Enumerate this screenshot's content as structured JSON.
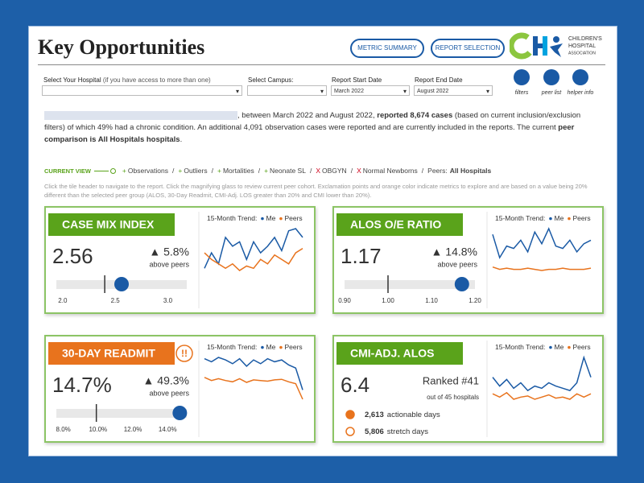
{
  "header": {
    "title": "Key Opportunities",
    "buttons": [
      "METRIC SUMMARY",
      "REPORT SELECTION"
    ],
    "logo": [
      "CHILDREN'S",
      "HOSPITAL",
      "ASSOCIATION"
    ]
  },
  "filters": {
    "hospital_label": "Select Your Hospital",
    "hospital_note": "(if you have access to more than one)",
    "campus_label": "Select Campus:",
    "start_label": "Report Start Date",
    "start_value": "March 2022",
    "end_label": "Report End Date",
    "end_value": "August 2022",
    "icons": [
      "filters",
      "peer list",
      "helper info"
    ]
  },
  "summary": [
    {
      "text": ", between March 2022 and August 2022, ",
      "bold": false
    },
    {
      "text": "reported 8,674 cases",
      "bold": true
    },
    {
      "text": " (based on current inclusion/exclusion filters) of which 49% had a chronic condition. An additional 4,091 observation cases were reported and are currently included in the reports. The current ",
      "bold": false
    },
    {
      "text": "peer comparison is All Hospitals hospitals",
      "bold": true
    },
    {
      "text": ".",
      "bold": false
    }
  ],
  "current_view": {
    "label": "CURRENT VIEW",
    "separator": "/",
    "items": [
      {
        "mark": "+",
        "text": "Observations",
        "excluded": false
      },
      {
        "mark": "+",
        "text": "Outliers",
        "excluded": false
      },
      {
        "mark": "+",
        "text": "Mortalities",
        "excluded": false
      },
      {
        "mark": "+",
        "text": "Neonate SL",
        "excluded": false
      },
      {
        "mark": "X",
        "text": "OBGYN",
        "excluded": true
      },
      {
        "mark": "X",
        "text": "Normal Newborns",
        "excluded": true
      }
    ],
    "peers_label": "Peers:",
    "peers_value": "All Hospitals"
  },
  "instructions": "Click the tile header to navigate to the report. Click the magnifying glass to review current peer cohort. Exclamation points and orange color indicate metrics to explore and are based on a value being 20% different than the selected peer group (ALOS, 30-Day Readmit, CMI-Adj. LOS greater than 20% and CMI lower than 20%).",
  "tiles": [
    {
      "title": "CASE MIX INDEX",
      "flagged": false,
      "value": 2.56,
      "change": "▲ 5.8%",
      "change_note": "above peers",
      "trend_label": "15-Month Trend:",
      "legend": [
        "Me",
        "Peers"
      ],
      "colors": [
        "#1a5aa5",
        "#e8731d"
      ],
      "trend": {
        "me": [
          48,
          55,
          50,
          62,
          58,
          60,
          52,
          60,
          55,
          58,
          62,
          56,
          65,
          66,
          62
        ],
        "peers": [
          55,
          52,
          50,
          48,
          50,
          47,
          49,
          48,
          52,
          50,
          54,
          52,
          50,
          55,
          57
        ]
      },
      "gauge": {
        "xlim": [
          1.94,
          3.18
        ],
        "ticks": [
          {
            "value": 2,
            "label": "2.0"
          },
          2.5,
          {
            "value": 3,
            "label": "3.0"
          }
        ],
        "peer": 2.4
      }
    },
    {
      "title": "ALOS O/E RATIO",
      "flagged": false,
      "value": 1.17,
      "change": "▲ 14.8%",
      "change_note": "above peers",
      "trend_label": "15-Month Trend:",
      "legend": [
        "Me",
        "Peers"
      ],
      "colors": [
        "#1a5aa5",
        "#e8731d"
      ],
      "trend": {
        "me": [
          60,
          40,
          50,
          48,
          55,
          45,
          62,
          52,
          65,
          50,
          48,
          55,
          45,
          52,
          55
        ],
        "peers": [
          32,
          30,
          31,
          30,
          30,
          31,
          30,
          29,
          30,
          30,
          31,
          30,
          30,
          30,
          31
        ]
      },
      "gauge": {
        "xlim": [
          0.9,
          1.2
        ],
        "ticks": [
          {
            "value": 0.9,
            "label": "0.90"
          },
          {
            "value": 1,
            "label": "1.00"
          },
          {
            "value": 1.1,
            "label": "1.10"
          },
          {
            "value": 1.2,
            "label": "1.20"
          }
        ],
        "peer": 1.0
      }
    },
    {
      "title": "30-DAY READMIT",
      "flagged": true,
      "flag": "!!",
      "value": 14.7,
      "value_label": "14.7%",
      "change": "▲ 49.3%",
      "change_note": "above peers",
      "trend_label": "15-Month Trend:",
      "legend": [
        "Me",
        "Peers"
      ],
      "colors": [
        "#1a5aa5",
        "#e8731d"
      ],
      "trend": {
        "me": [
          70,
          65,
          72,
          68,
          62,
          70,
          58,
          68,
          62,
          70,
          65,
          68,
          60,
          55,
          20
        ],
        "peers": [
          40,
          35,
          38,
          35,
          33,
          38,
          32,
          36,
          35,
          34,
          36,
          37,
          33,
          30,
          5
        ]
      },
      "gauge": {
        "xlim": [
          7.6,
          15.1
        ],
        "ticks": [
          {
            "value": 8,
            "label": "8.0%"
          },
          {
            "value": 10,
            "label": "10.0%"
          },
          {
            "value": 12,
            "label": "12.0%"
          },
          {
            "value": 14,
            "label": "14.0%"
          }
        ],
        "peer": 9.9
      }
    },
    {
      "title": "CMI-ADJ. ALOS",
      "flagged": false,
      "value": 6.4,
      "rank": "Ranked #41",
      "rank_note": "out of 45 hospitals",
      "trend_label": "15-Month Trend:",
      "legend": [
        "Me",
        "Peers"
      ],
      "colors": [
        "#1a5aa5",
        "#e8731d"
      ],
      "trend": {
        "me": [
          60,
          52,
          58,
          50,
          55,
          48,
          52,
          50,
          55,
          52,
          50,
          48,
          55,
          78,
          60
        ],
        "peers": [
          45,
          42,
          46,
          40,
          42,
          43,
          40,
          42,
          44,
          41,
          42,
          40,
          45,
          42,
          45
        ]
      },
      "days": [
        {
          "value": "2,613",
          "text": "actionable days",
          "filled": true
        },
        {
          "value": "5,806",
          "text": "stretch days",
          "filled": false
        }
      ]
    }
  ]
}
